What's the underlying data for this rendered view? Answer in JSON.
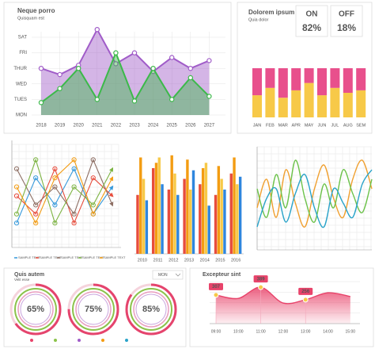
{
  "chart_data": [
    {
      "type": "area",
      "title": "Neque porro",
      "subtitle": "Quisquam est",
      "categories": [
        "2018",
        "2019",
        "2020",
        "2021",
        "2022",
        "2023",
        "2024",
        "2025",
        "2026",
        "2027"
      ],
      "ycategories": [
        "MON",
        "TUES",
        "WED",
        "THUR",
        "FRI",
        "SAT"
      ],
      "ylim": [
        0,
        5
      ],
      "series": [
        {
          "color": "#a05cc8",
          "values": [
            3.0,
            2.6,
            3.2,
            5.5,
            3.3,
            4.0,
            2.8,
            3.7,
            3.0,
            3.5
          ]
        },
        {
          "color": "#3cb94a",
          "values": [
            0.8,
            1.7,
            3.0,
            1.0,
            4.0,
            0.9,
            3.0,
            1.0,
            2.4,
            1.2
          ]
        }
      ]
    },
    {
      "type": "stacked_bar",
      "title": "Dolorem ipsum",
      "subtitle": "Quia dolor",
      "kpis": [
        {
          "label": "ON",
          "value": 82,
          "value_label": "82%",
          "color": "#2eaa4f"
        },
        {
          "label": "OFF",
          "value": 18,
          "value_label": "18%",
          "color": "#e8436a"
        }
      ],
      "categories": [
        "JAN",
        "FEB",
        "MAR",
        "APR",
        "MAY",
        "JUN",
        "JUL",
        "AUG",
        "SEM"
      ],
      "ylim": [
        0,
        100
      ],
      "series": [
        {
          "color": "#f7c948",
          "values": [
            45,
            60,
            40,
            55,
            70,
            45,
            60,
            50,
            55
          ]
        },
        {
          "color": "#e8508c",
          "values": [
            55,
            40,
            60,
            45,
            30,
            55,
            40,
            50,
            45
          ]
        }
      ]
    },
    {
      "type": "line_arrows",
      "x": [
        0,
        2,
        4,
        6,
        8,
        10
      ],
      "xlim": [
        0,
        10
      ],
      "ylim": [
        0,
        10
      ],
      "series": [
        {
          "name": "SAMPLE TEXT",
          "color": "#3498db",
          "values": [
            2,
            7,
            4,
            8,
            3,
            6
          ]
        },
        {
          "name": "SAMPLE TEXT",
          "color": "#e74c3c",
          "values": [
            5,
            3,
            8,
            2,
            7,
            5
          ]
        },
        {
          "name": "SAMPLE TEXT",
          "color": "#8d6e63",
          "values": [
            8,
            4,
            6,
            3,
            9,
            4
          ]
        },
        {
          "name": "SAMPLE TEXT",
          "color": "#7cb342",
          "values": [
            3,
            9,
            2,
            6,
            4,
            8
          ]
        },
        {
          "name": "SAMPLE TEXT",
          "color": "#f39c12",
          "values": [
            6,
            2,
            7,
            9,
            3,
            7
          ]
        }
      ]
    },
    {
      "type": "grouped_bar",
      "categories": [
        "2010",
        "2011",
        "2012",
        "2013",
        "2014",
        "2015",
        "2016"
      ],
      "ylim": [
        0,
        100
      ],
      "series": [
        {
          "color": "#e74c3c",
          "values": [
            55,
            80,
            60,
            70,
            65,
            55,
            75
          ]
        },
        {
          "color": "#f39c12",
          "values": [
            90,
            85,
            92,
            88,
            80,
            82,
            90
          ]
        },
        {
          "color": "#f7c948",
          "values": [
            70,
            90,
            75,
            60,
            85,
            70,
            65
          ]
        },
        {
          "color": "#2e86de",
          "values": [
            50,
            65,
            55,
            78,
            45,
            60,
            72
          ]
        }
      ]
    },
    {
      "type": "wave",
      "x": [
        0,
        1,
        2,
        3,
        4,
        5,
        6,
        7,
        8,
        9,
        10,
        11,
        12
      ],
      "xlim": [
        0,
        12
      ],
      "ylim": [
        0,
        100
      ],
      "series": [
        {
          "color": "#f0a030",
          "values": [
            40,
            70,
            30,
            80,
            45,
            20,
            60,
            85,
            50,
            30,
            70,
            90,
            60
          ]
        },
        {
          "color": "#6cc24a",
          "values": [
            60,
            30,
            75,
            40,
            90,
            50,
            25,
            65,
            40,
            80,
            55,
            35,
            70
          ]
        },
        {
          "color": "#29a3c9",
          "values": [
            20,
            50,
            60,
            25,
            55,
            75,
            40,
            20,
            60,
            45,
            30,
            65,
            80
          ]
        }
      ]
    },
    {
      "type": "donut",
      "title": "Quis autem",
      "subtitle": "Velit esse",
      "control": "MON",
      "values": [
        65,
        75,
        85
      ],
      "value_labels": [
        "65%",
        "75%",
        "85%"
      ],
      "color": "#e5446d"
    },
    {
      "type": "smooth_area",
      "title": "Excepteur sint",
      "categories": [
        "09:00",
        "10:00",
        "11:00",
        "12:00",
        "13:00",
        "14:00",
        "15:00"
      ],
      "ylim": [
        0,
        450
      ],
      "values": [
        307,
        270,
        389,
        220,
        256,
        330,
        290
      ],
      "labeled_points": [
        0,
        2,
        4
      ],
      "color": "#e8436a"
    }
  ]
}
